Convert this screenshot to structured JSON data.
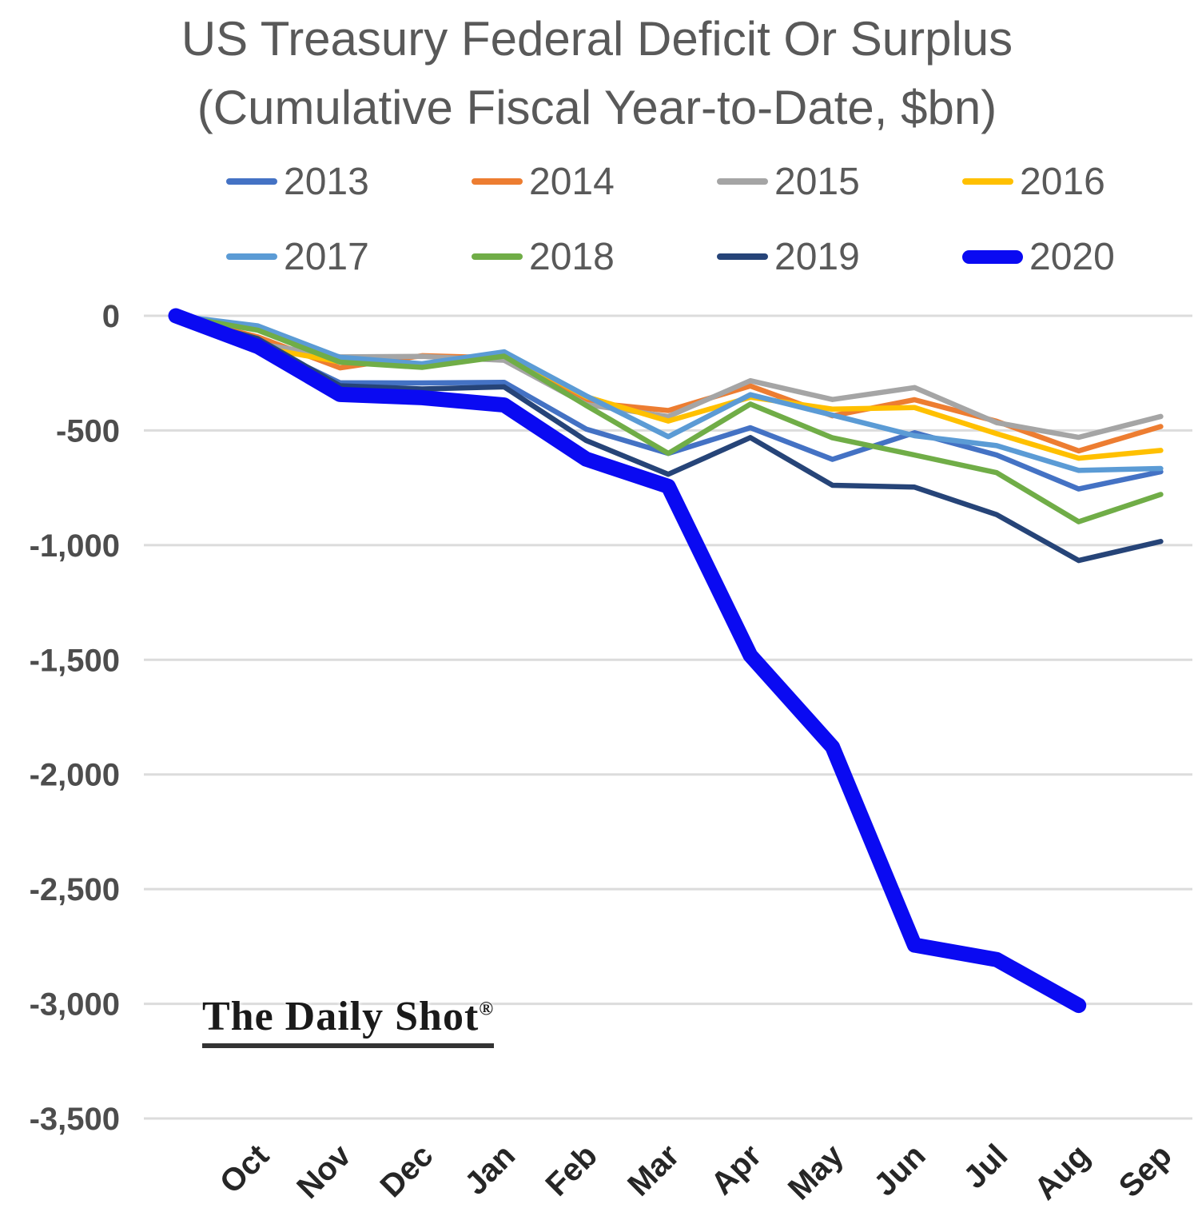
{
  "title": {
    "line1": "US Treasury Federal Deficit Or Surplus",
    "line2": "(Cumulative Fiscal Year-to-Date, $bn)"
  },
  "watermark": {
    "text": "The Daily Shot",
    "registered_mark": "®"
  },
  "colors": {
    "background": "#ffffff",
    "title_text": "#595959",
    "legend_text": "#595959",
    "gridline": "#dcdcdc",
    "y_tick_text": "#4d4d4d",
    "x_tick_text": "#262626"
  },
  "chart_data": {
    "type": "line",
    "title": "US Treasury Federal Deficit Or Surplus (Cumulative Fiscal Year-to-Date, $bn)",
    "xlabel": "",
    "ylabel": "",
    "categories": [
      "",
      "Oct",
      "Nov",
      "Dec",
      "Jan",
      "Feb",
      "Mar",
      "Apr",
      "May",
      "Jun",
      "Jul",
      "Aug",
      "Sep"
    ],
    "note": "Every series starts from a zero origin point one slot left of Oct (start of fiscal year). Values are cumulative fiscal-year-to-date deficit in $bn, read from the plot. 2020 line ends at Aug.",
    "ylim": [
      -3500,
      0
    ],
    "y_ticks": [
      "0",
      "-500",
      "-1,000",
      "-1,500",
      "-2,000",
      "-2,500",
      "-3,000",
      "-3,500"
    ],
    "y_tick_values": [
      0,
      -500,
      -1000,
      -1500,
      -2000,
      -2500,
      -3000,
      -3500
    ],
    "grid": "horizontal",
    "legend_position": "top",
    "series": [
      {
        "name": "2013",
        "color": "#4472C4",
        "width": 6.5,
        "values": [
          0,
          -120,
          -292,
          -293,
          -290,
          -494,
          -600,
          -488,
          -626,
          -510,
          -607,
          -755,
          -680
        ]
      },
      {
        "name": "2014",
        "color": "#ED7D31",
        "width": 6.5,
        "values": [
          0,
          -92,
          -227,
          -174,
          -184,
          -377,
          -413,
          -306,
          -436,
          -366,
          -460,
          -589,
          -483
        ]
      },
      {
        "name": "2015",
        "color": "#A5A5A5",
        "width": 6.5,
        "values": [
          0,
          -122,
          -179,
          -177,
          -194,
          -387,
          -439,
          -283,
          -365,
          -313,
          -466,
          -530,
          -439
        ]
      },
      {
        "name": "2016",
        "color": "#FFC000",
        "width": 6.5,
        "values": [
          0,
          -136,
          -201,
          -216,
          -160,
          -353,
          -459,
          -355,
          -407,
          -400,
          -514,
          -621,
          -587
        ]
      },
      {
        "name": "2017",
        "color": "#5B9BD5",
        "width": 6.5,
        "values": [
          0,
          -44,
          -181,
          -209,
          -157,
          -349,
          -527,
          -344,
          -433,
          -523,
          -566,
          -674,
          -666
        ]
      },
      {
        "name": "2018",
        "color": "#70AD47",
        "width": 6.5,
        "values": [
          0,
          -63,
          -202,
          -225,
          -176,
          -391,
          -600,
          -385,
          -532,
          -607,
          -684,
          -898,
          -779
        ]
      },
      {
        "name": "2019",
        "color": "#264478",
        "width": 6.5,
        "values": [
          0,
          -100,
          -305,
          -319,
          -310,
          -544,
          -691,
          -531,
          -739,
          -747,
          -867,
          -1067,
          -984
        ]
      },
      {
        "name": "2020",
        "color": "#0a0af2",
        "width": 19,
        "values": [
          0,
          -134,
          -343,
          -357,
          -389,
          -625,
          -744,
          -1481,
          -1880,
          -2744,
          -2807,
          -3007,
          null
        ]
      }
    ]
  }
}
